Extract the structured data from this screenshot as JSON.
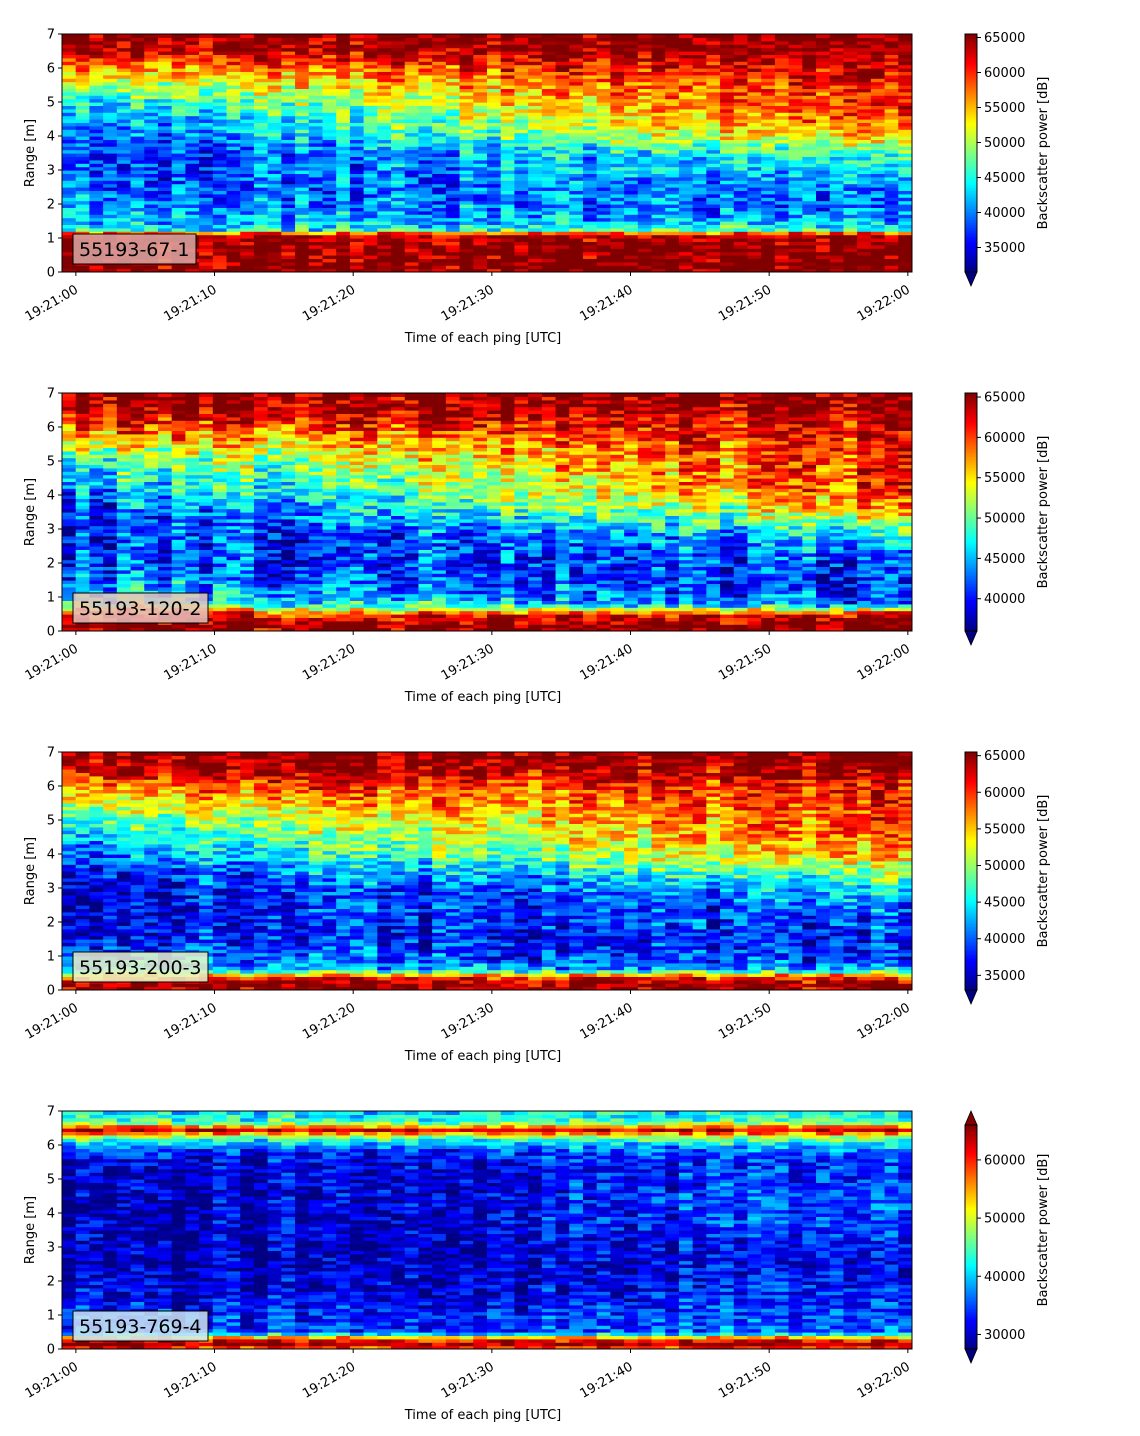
{
  "chart_data": [
    {
      "type": "heatmap",
      "panel_label": "55193-67-1",
      "label_box_color": "#dba9a6",
      "xlabel": "Time of each ping [UTC]",
      "ylabel": "Range [m]",
      "colorbar_label": "Backscatter power [dB]",
      "x_ticks": [
        "19:21:00",
        "19:21:10",
        "19:21:20",
        "19:21:30",
        "19:21:40",
        "19:21:50",
        "19:22:00"
      ],
      "y_ticks": [
        "0",
        "1",
        "2",
        "3",
        "4",
        "5",
        "6",
        "7"
      ],
      "xlim_seconds": [
        -1,
        60.3
      ],
      "ylim": [
        0,
        7
      ],
      "colorbar_ticks": [
        "35000",
        "40000",
        "45000",
        "50000",
        "55000",
        "60000",
        "65000"
      ],
      "colorbar_range": [
        31500,
        65500
      ],
      "colorbar_extend": "min",
      "colormap": "jet",
      "profile_range_m": [
        0,
        0.6,
        1.1,
        1.25,
        1.6,
        2.0,
        2.5,
        3.0,
        3.5,
        4.0,
        4.5,
        5.0,
        5.5,
        6.0,
        6.5,
        7.0
      ],
      "profile_start": [
        65500,
        65500,
        64000,
        44000,
        42000,
        41000,
        39000,
        38000,
        37000,
        38000,
        40000,
        44000,
        50000,
        56000,
        64000,
        65500
      ],
      "profile_end": [
        65500,
        65500,
        64000,
        46000,
        40000,
        38000,
        39000,
        43000,
        46000,
        55000,
        59000,
        60000,
        61000,
        62000,
        64000,
        65500
      ]
    },
    {
      "type": "heatmap",
      "panel_label": "55193-120-2",
      "label_box_color": "#e6c3c0",
      "xlabel": "Time of each ping [UTC]",
      "ylabel": "Range [m]",
      "colorbar_label": "Backscatter power [dB]",
      "x_ticks": [
        "19:21:00",
        "19:21:10",
        "19:21:20",
        "19:21:30",
        "19:21:40",
        "19:21:50",
        "19:22:00"
      ],
      "y_ticks": [
        "0",
        "1",
        "2",
        "3",
        "4",
        "5",
        "6",
        "7"
      ],
      "xlim_seconds": [
        -1,
        60.3
      ],
      "ylim": [
        0,
        7
      ],
      "colorbar_ticks": [
        "40000",
        "45000",
        "50000",
        "55000",
        "60000",
        "65000"
      ],
      "colorbar_range": [
        36000,
        65500
      ],
      "colorbar_extend": "min",
      "colormap": "jet",
      "profile_range_m": [
        0,
        0.2,
        0.5,
        0.8,
        1.2,
        1.6,
        2.0,
        2.5,
        3.0,
        3.5,
        4.0,
        4.5,
        5.0,
        5.5,
        6.0,
        6.5,
        7.0
      ],
      "profile_start": [
        65000,
        65500,
        62000,
        50000,
        46000,
        43000,
        42000,
        41000,
        40000,
        41000,
        43000,
        46000,
        49000,
        54000,
        60000,
        64500,
        65500
      ],
      "profile_end": [
        65000,
        65500,
        62000,
        42000,
        40000,
        40000,
        41000,
        43000,
        48000,
        55000,
        59000,
        61000,
        61000,
        61000,
        62000,
        64500,
        65500
      ]
    },
    {
      "type": "heatmap",
      "panel_label": "55193-200-3",
      "label_box_color": "#eaf2c8",
      "xlabel": "Time of each ping [UTC]",
      "ylabel": "Range [m]",
      "colorbar_label": "Backscatter power [dB]",
      "x_ticks": [
        "19:21:00",
        "19:21:10",
        "19:21:20",
        "19:21:30",
        "19:21:40",
        "19:21:50",
        "19:22:00"
      ],
      "y_ticks": [
        "0",
        "1",
        "2",
        "3",
        "4",
        "5",
        "6",
        "7"
      ],
      "xlim_seconds": [
        -1,
        60.3
      ],
      "ylim": [
        0,
        7
      ],
      "colorbar_ticks": [
        "35000",
        "40000",
        "45000",
        "50000",
        "55000",
        "60000",
        "65000"
      ],
      "colorbar_range": [
        33000,
        65500
      ],
      "colorbar_extend": "min",
      "colormap": "jet",
      "profile_range_m": [
        0,
        0.15,
        0.4,
        0.6,
        1.0,
        1.5,
        2.0,
        2.5,
        3.0,
        3.5,
        4.0,
        4.5,
        5.0,
        5.5,
        6.0,
        6.5,
        7.0
      ],
      "profile_start": [
        64000,
        65500,
        60000,
        44000,
        40000,
        38000,
        37000,
        36000,
        36000,
        38000,
        41000,
        44000,
        48000,
        53000,
        58000,
        64000,
        65500
      ],
      "profile_end": [
        64000,
        65500,
        60000,
        42000,
        38000,
        37000,
        39000,
        41000,
        44000,
        50000,
        56000,
        59000,
        60000,
        60000,
        61000,
        64000,
        65500
      ]
    },
    {
      "type": "heatmap",
      "panel_label": "55193-769-4",
      "label_box_color": "#cfe5f2",
      "xlabel": "Time of each ping [UTC]",
      "ylabel": "Range [m]",
      "colorbar_label": "Backscatter power [dB]",
      "x_ticks": [
        "19:21:00",
        "19:21:10",
        "19:21:20",
        "19:21:30",
        "19:21:40",
        "19:21:50",
        "19:22:00"
      ],
      "y_ticks": [
        "0",
        "1",
        "2",
        "3",
        "4",
        "5",
        "6",
        "7"
      ],
      "xlim_seconds": [
        -1,
        60.3
      ],
      "ylim": [
        0,
        7
      ],
      "colorbar_ticks": [
        "30000",
        "40000",
        "50000",
        "60000"
      ],
      "colorbar_range": [
        27500,
        66000
      ],
      "colorbar_extend": "both",
      "colormap": "jet",
      "profile_range_m": [
        0,
        0.12,
        0.3,
        0.5,
        1.0,
        1.5,
        2.0,
        2.5,
        3.0,
        3.5,
        4.0,
        4.5,
        5.0,
        5.5,
        5.9,
        6.2,
        6.45,
        6.7,
        7.0
      ],
      "profile_start": [
        56000,
        66000,
        60000,
        34000,
        33000,
        31000,
        30000,
        29000,
        28500,
        29000,
        29000,
        29000,
        29000,
        30000,
        34000,
        44000,
        63000,
        44000,
        40000
      ],
      "profile_end": [
        56000,
        66000,
        60000,
        36000,
        35000,
        34000,
        33000,
        32000,
        33000,
        35000,
        36000,
        36000,
        35000,
        34000,
        38000,
        46000,
        63000,
        44000,
        42000
      ]
    }
  ]
}
